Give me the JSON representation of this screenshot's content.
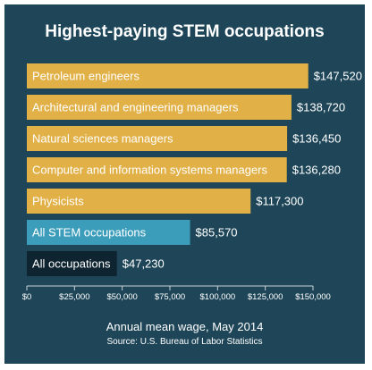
{
  "colors": {
    "background": "#1e4658",
    "highlight_bar": "#e1b046",
    "stem_bar": "#3c9dbb",
    "all_bar": "#0e2430",
    "axis": "#c8d3d8"
  },
  "chart_data": {
    "type": "bar",
    "orientation": "horizontal",
    "title": "Highest-paying STEM occupations",
    "xlabel": "Annual mean wage, May 2014",
    "source": "Source: U.S. Bureau of Labor Statistics",
    "xlim": [
      0,
      150000
    ],
    "xticks": [
      0,
      25000,
      50000,
      75000,
      100000,
      125000,
      150000
    ],
    "xtick_labels": [
      "$0",
      "$25,000",
      "$50,000",
      "$75,000",
      "$100,000",
      "$125,000",
      "$150,000"
    ],
    "categories": [
      "Petroleum engineers",
      "Architectural and engineering managers",
      "Natural sciences managers",
      "Computer and information systems managers",
      "Physicists",
      "All STEM occupations",
      "All occupations"
    ],
    "values": [
      147520,
      138720,
      136450,
      136280,
      117300,
      85570,
      47230
    ],
    "value_labels": [
      "$147,520",
      "$138,720",
      "$136,450",
      "$136,280",
      "$117,300",
      "$85,570",
      "$47,230"
    ],
    "bar_color_keys": [
      "highlight_bar",
      "highlight_bar",
      "highlight_bar",
      "highlight_bar",
      "highlight_bar",
      "stem_bar",
      "all_bar"
    ],
    "grid": false
  }
}
